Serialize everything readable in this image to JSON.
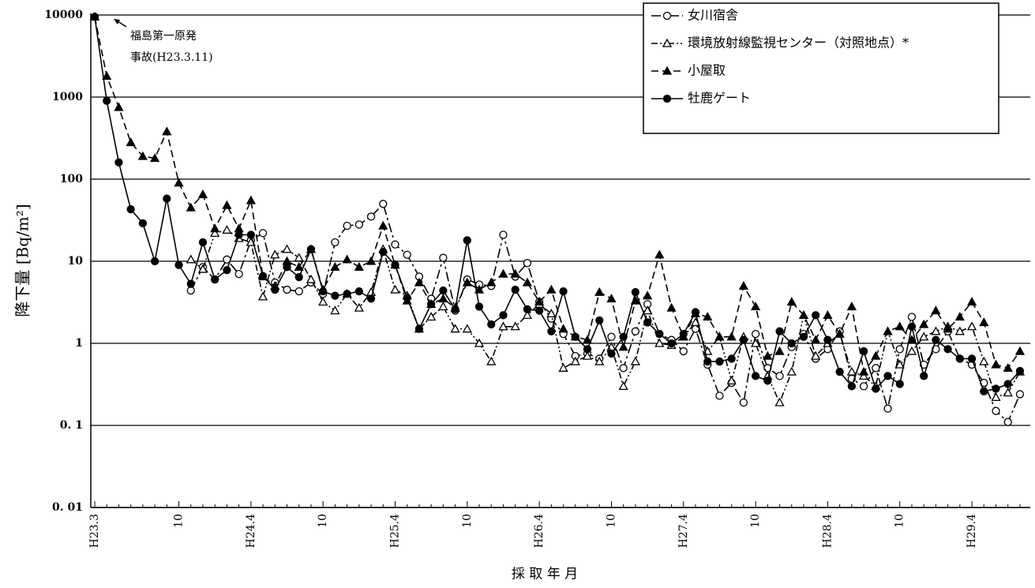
{
  "chart_data": {
    "type": "line",
    "y_label": "降下量 [Bq/m²]",
    "x_label": "採 取 年 月",
    "annotation": [
      "福島第一原発",
      "事故(H23.3.11)"
    ],
    "log_scale": true,
    "grid": true,
    "legend": "top-right",
    "ylim": [
      0.01,
      10000
    ],
    "yticks": [
      {
        "value": 0.01,
        "label": "0. 01"
      },
      {
        "value": 0.1,
        "label": "0. 1"
      },
      1,
      10,
      100,
      1000,
      10000
    ],
    "categories": [
      "H23.3",
      null,
      null,
      null,
      null,
      null,
      null,
      "10",
      null,
      null,
      null,
      null,
      null,
      "H24.4",
      null,
      null,
      null,
      null,
      null,
      "10",
      null,
      null,
      null,
      null,
      null,
      "H25.4",
      null,
      null,
      null,
      null,
      null,
      "10",
      null,
      null,
      null,
      null,
      null,
      "H26.4",
      null,
      null,
      null,
      null,
      null,
      "10",
      null,
      null,
      null,
      null,
      null,
      "H27.4",
      null,
      null,
      null,
      null,
      null,
      "10",
      null,
      null,
      null,
      null,
      null,
      "H28.4",
      null,
      null,
      null,
      null,
      null,
      "10",
      null,
      null,
      null,
      null,
      null,
      "H29.4",
      null,
      null,
      null,
      null
    ],
    "series": [
      {
        "name": "女川宿舎",
        "color": "#000000",
        "line_style": "dash-dot",
        "marker": "circle-open",
        "values": [
          null,
          null,
          null,
          null,
          null,
          null,
          null,
          null,
          4.4,
          8.5,
          6,
          10.5,
          7,
          18,
          22,
          5.5,
          4.5,
          4.3,
          5.5,
          4,
          17,
          27,
          28,
          35,
          50,
          16,
          12,
          6.5,
          3.5,
          11,
          2.5,
          6,
          5.2,
          5,
          21,
          6.5,
          9.5,
          3.2,
          2,
          1.3,
          0.7,
          0.75,
          0.65,
          1.2,
          0.5,
          1.4,
          3,
          1.3,
          1.1,
          0.8,
          1.5,
          0.55,
          0.23,
          0.33,
          0.19,
          1.3,
          0.5,
          0.4,
          0.9,
          1.3,
          0.65,
          0.85,
          1.4,
          0.37,
          0.3,
          0.5,
          0.16,
          0.85,
          2.1,
          0.55,
          0.85,
          1.4,
          0.65,
          0.55,
          0.33,
          0.15,
          0.11,
          0.24
        ]
      },
      {
        "name": "環境放射線監視センター（対照地点）*",
        "color": "#000000",
        "line_style": "dash-dot-dot",
        "marker": "triangle-open",
        "values": [
          null,
          null,
          null,
          null,
          null,
          null,
          null,
          null,
          10.5,
          8,
          22,
          24,
          19,
          17,
          3.7,
          12,
          14,
          11,
          6,
          3.2,
          2.5,
          4,
          2.7,
          4.2,
          14,
          4.5,
          3.8,
          1.5,
          2.1,
          2.8,
          1.5,
          1.5,
          1,
          0.6,
          1.6,
          1.6,
          2.2,
          3,
          2.3,
          0.5,
          0.6,
          0.7,
          0.6,
          0.9,
          0.3,
          0.6,
          2.5,
          1,
          0.95,
          1.2,
          1.8,
          0.8,
          1.2,
          0.35,
          1.2,
          1,
          0.4,
          0.19,
          0.45,
          2.2,
          0.7,
          1,
          1.3,
          0.45,
          0.4,
          0.3,
          1.4,
          0.55,
          0.8,
          1.2,
          1.4,
          1.6,
          1.4,
          1.6,
          0.6,
          0.22,
          0.25,
          0.45
        ]
      },
      {
        "name": "小屋取",
        "color": "#000000",
        "line_style": "dashed",
        "marker": "triangle-filled",
        "values": [
          9500,
          1800,
          750,
          280,
          190,
          180,
          380,
          90,
          45,
          65,
          25,
          48,
          25,
          55,
          6.5,
          5,
          10,
          8.5,
          14,
          4.5,
          8.5,
          10.5,
          8.5,
          10,
          27,
          9,
          3.3,
          5.5,
          3,
          3.5,
          2.7,
          5.5,
          4.5,
          5.5,
          7,
          7,
          5.5,
          3.2,
          4.5,
          1.5,
          1.2,
          1.1,
          4.2,
          3.5,
          0.9,
          3.3,
          3.8,
          12,
          2.7,
          1.2,
          2.3,
          2.1,
          1.2,
          1.2,
          5,
          2.8,
          0.7,
          0.8,
          3.2,
          2.2,
          1.1,
          2.2,
          1.3,
          2.8,
          0.45,
          0.7,
          1.4,
          1.6,
          1.1,
          1.7,
          2.5,
          1.5,
          2.1,
          3.2,
          1.8,
          0.55,
          0.5,
          0.8
        ]
      },
      {
        "name": "牡鹿ゲート",
        "color": "#000000",
        "line_style": "solid",
        "marker": "circle-filled",
        "values": [
          9500,
          900,
          160,
          43,
          29,
          10,
          58,
          9,
          5.3,
          17,
          6,
          7.8,
          21,
          21,
          6.6,
          4.5,
          8.5,
          6.4,
          14,
          4.3,
          3.8,
          4,
          4.3,
          3.5,
          13,
          9,
          3.6,
          1.5,
          3,
          4.4,
          2.6,
          18,
          2.8,
          1.7,
          2.2,
          4.5,
          2.6,
          2.5,
          1.4,
          4.3,
          1.2,
          0.85,
          1.9,
          0.75,
          1.2,
          4.2,
          1.8,
          1.3,
          1,
          1.3,
          2.4,
          0.6,
          0.6,
          0.65,
          1.1,
          0.4,
          0.35,
          1.4,
          1,
          1.2,
          2.2,
          1.1,
          0.45,
          0.3,
          0.8,
          0.28,
          0.4,
          0.32,
          1.6,
          0.4,
          1.1,
          0.85,
          0.65,
          0.65,
          0.26,
          0.28,
          0.32,
          0.46
        ]
      }
    ]
  }
}
